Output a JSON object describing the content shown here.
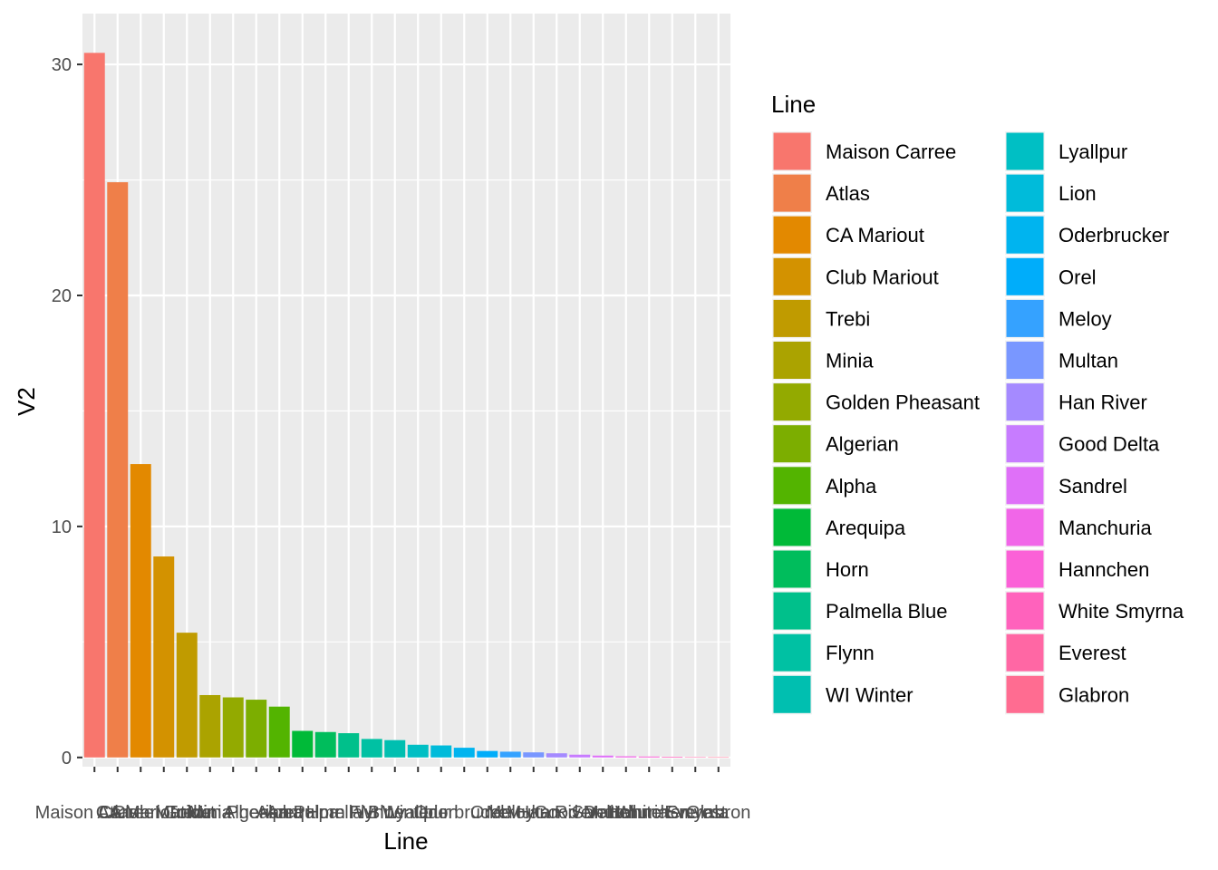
{
  "chart_data": {
    "type": "bar",
    "xlabel": "Line",
    "ylabel": "V2",
    "ylim": [
      -0.4,
      32.2
    ],
    "yticks": [
      0,
      10,
      20,
      30
    ],
    "grid": true,
    "legend_title": "Line",
    "legend_position": "right",
    "categories": [
      "Maison Carree",
      "Atlas",
      "CA Mariout",
      "Club Mariout",
      "Trebi",
      "Minia",
      "Golden Pheasant",
      "Algerian",
      "Alpha",
      "Arequipa",
      "Horn",
      "Palmella Blue",
      "Flynn",
      "WI Winter",
      "Lyallpur",
      "Lion",
      "Oderbrucker",
      "Orel",
      "Meloy",
      "Multan",
      "Han River",
      "Good Delta",
      "Sandrel",
      "Manchuria",
      "Hannchen",
      "White Smyrna",
      "Everest",
      "Glabron"
    ],
    "values": [
      30.5,
      24.9,
      12.7,
      8.7,
      5.4,
      2.7,
      2.6,
      2.5,
      2.2,
      1.15,
      1.1,
      1.05,
      0.8,
      0.75,
      0.55,
      0.52,
      0.42,
      0.28,
      0.25,
      0.22,
      0.18,
      0.12,
      0.08,
      0.05,
      0.04,
      0.03,
      0.015,
      0.01
    ],
    "colors": [
      "#F8766D",
      "#EF7F49",
      "#E38900",
      "#D39200",
      "#C09B00",
      "#ABA300",
      "#93AA00",
      "#7CAE00",
      "#53B400",
      "#00BA38",
      "#00BD5C",
      "#00C08B",
      "#00C1A3",
      "#00BFB0",
      "#00BFC4",
      "#00BBDA",
      "#00B4EF",
      "#00ADFA",
      "#35A2FF",
      "#7997FF",
      "#A58AFF",
      "#C77CFF",
      "#DF70F8",
      "#F166E8",
      "#FB61D7",
      "#FF62BC",
      "#FF67A4",
      "#FF6C91"
    ]
  }
}
